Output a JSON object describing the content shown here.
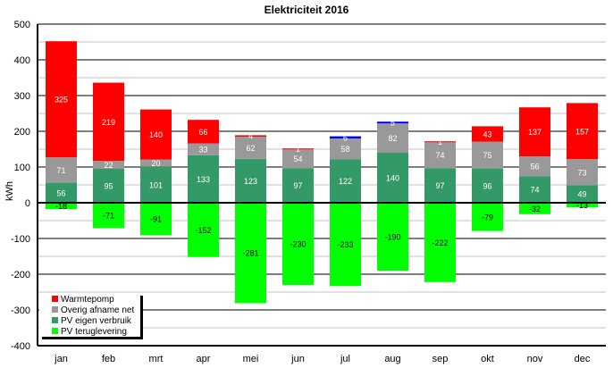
{
  "chart_data": {
    "type": "bar",
    "stacked": true,
    "title": "Elektriciteit 2016",
    "xlabel": "",
    "ylabel": "kWh",
    "ylim": [
      -400,
      500
    ],
    "yticks": [
      500,
      400,
      300,
      200,
      100,
      0,
      -100,
      -200,
      -300,
      -400
    ],
    "grid": true,
    "legend_position": "bottom-left",
    "categories": [
      "jan",
      "feb",
      "mrt",
      "apr",
      "mei",
      "jun",
      "jul",
      "aug",
      "sep",
      "okt",
      "nov",
      "dec"
    ],
    "series": [
      {
        "name": "PV eigen verbruik",
        "color": "#339966",
        "label_color": "#ffffff",
        "values": [
          56,
          95,
          101,
          133,
          123,
          97,
          122,
          140,
          97,
          96,
          74,
          49
        ]
      },
      {
        "name": "Overig afname net",
        "color": "#999999",
        "label_color": "#ffffff",
        "values": [
          71,
          22,
          20,
          33,
          62,
          54,
          58,
          82,
          74,
          75,
          56,
          73
        ]
      },
      {
        "name": "Warmtepomp",
        "color": "#ff0000",
        "label_color": "#ffffff",
        "values": [
          325,
          219,
          140,
          66,
          4,
          1,
          0,
          0,
          1,
          43,
          137,
          157
        ]
      },
      {
        "name": "",
        "color": "#0000ff",
        "label_color": "#ffffff",
        "values": [
          0,
          0,
          0,
          0,
          0,
          0,
          6,
          5,
          0,
          0,
          0,
          0
        ]
      },
      {
        "name": "PV teruglevering",
        "color": "#00ff00",
        "label_color": "#000000",
        "values": [
          -18,
          -71,
          -91,
          -152,
          -281,
          -230,
          -233,
          -190,
          -222,
          -79,
          -32,
          -13
        ]
      }
    ],
    "legend_order": [
      "Warmtepomp",
      "Overig afname net",
      "PV eigen verbruik",
      "PV teruglevering"
    ]
  }
}
